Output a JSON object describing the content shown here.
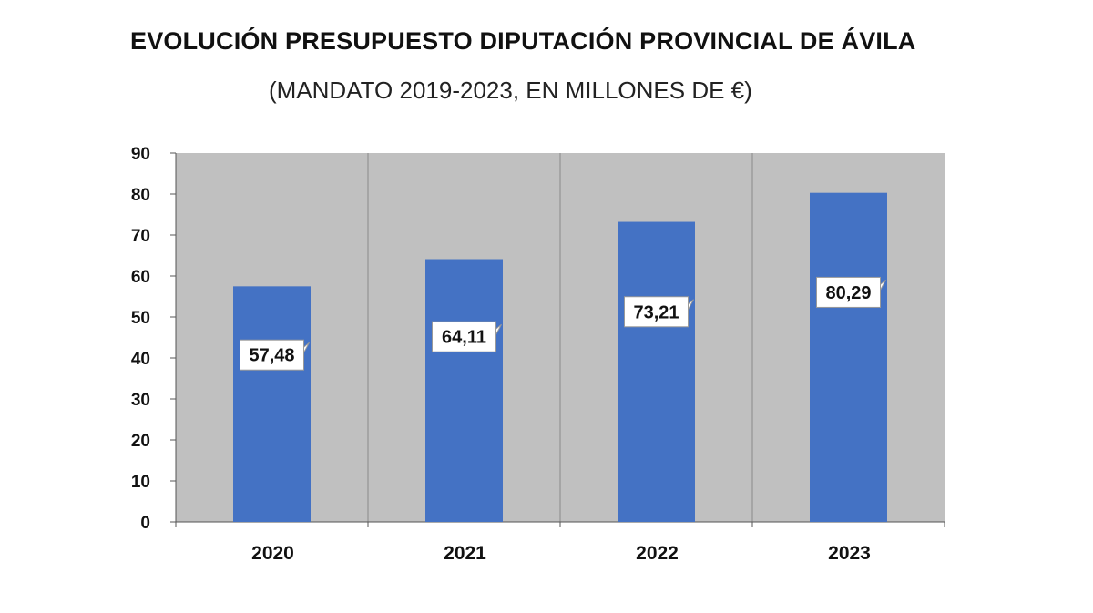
{
  "chart_data": {
    "type": "bar",
    "title": "EVOLUCIÓN PRESUPUESTO DIPUTACIÓN PROVINCIAL DE ÁVILA",
    "subtitle": "(MANDATO 2019-2023, EN MILLONES DE €)",
    "categories": [
      "2020",
      "2021",
      "2022",
      "2023"
    ],
    "values": [
      57.48,
      64.11,
      73.21,
      80.29
    ],
    "data_labels": [
      "57,48",
      "64,11",
      "73,21",
      "80,29"
    ],
    "ylim": [
      0,
      90
    ],
    "yticks": [
      0,
      10,
      20,
      30,
      40,
      50,
      60,
      70,
      80,
      90
    ],
    "grid": "vertical category separators",
    "legend": "none",
    "colors": {
      "bar": "#4472C4",
      "plot_background": "#C0C0C0",
      "label_box": "#FFFFFF"
    }
  }
}
